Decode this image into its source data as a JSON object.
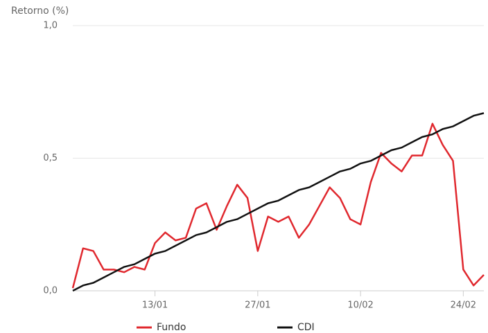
{
  "chart_data": {
    "type": "line",
    "y_label": "Retorno (%)",
    "categories": [
      null,
      null,
      null,
      null,
      null,
      null,
      null,
      null,
      "13/01",
      null,
      null,
      null,
      null,
      null,
      null,
      null,
      null,
      null,
      "27/01",
      null,
      null,
      null,
      null,
      null,
      null,
      null,
      null,
      null,
      "10/02",
      null,
      null,
      null,
      null,
      null,
      null,
      null,
      null,
      null,
      "24/02",
      null,
      null
    ],
    "series": [
      {
        "name": "Fundo",
        "color": "#e0282e",
        "values": [
          0.01,
          0.16,
          0.15,
          0.08,
          0.08,
          0.07,
          0.09,
          0.08,
          0.18,
          0.22,
          0.19,
          0.2,
          0.31,
          0.33,
          0.23,
          0.32,
          0.4,
          0.35,
          0.15,
          0.28,
          0.26,
          0.28,
          0.2,
          0.25,
          0.32,
          0.39,
          0.35,
          0.27,
          0.25,
          0.41,
          0.52,
          0.48,
          0.45,
          0.51,
          0.51,
          0.63,
          0.55,
          0.49,
          0.08,
          0.02,
          0.06
        ]
      },
      {
        "name": "CDI",
        "color": "#111111",
        "values": [
          0.0,
          0.02,
          0.03,
          0.05,
          0.07,
          0.09,
          0.1,
          0.12,
          0.14,
          0.15,
          0.17,
          0.19,
          0.21,
          0.22,
          0.24,
          0.26,
          0.27,
          0.29,
          0.31,
          0.33,
          0.34,
          0.36,
          0.38,
          0.39,
          0.41,
          0.43,
          0.45,
          0.46,
          0.48,
          0.49,
          0.51,
          0.53,
          0.54,
          0.56,
          0.58,
          0.59,
          0.61,
          0.62,
          0.64,
          0.66,
          0.67
        ]
      }
    ],
    "ylim": [
      0,
      1
    ],
    "yticks": [
      {
        "value": 0,
        "label": "0,0"
      },
      {
        "value": 0.5,
        "label": "0,5"
      },
      {
        "value": 1,
        "label": "1,0"
      }
    ],
    "grid": true
  }
}
